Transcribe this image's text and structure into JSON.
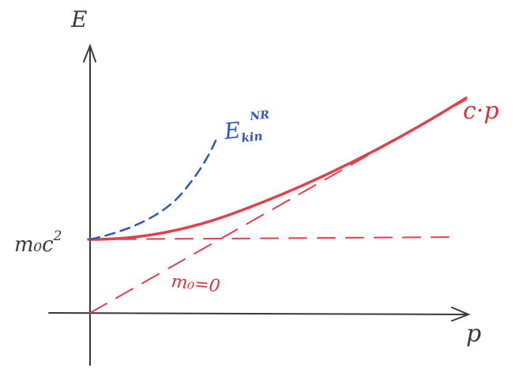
{
  "axes": {
    "y_label": "E",
    "x_label": "p"
  },
  "labels": {
    "rest_energy": {
      "main": "m₀c",
      "sup": "2"
    },
    "total_energy": "c·p",
    "massless": "m₀=0",
    "nonrel_kinetic": {
      "main": "E",
      "sup": "NR",
      "sub": "kin"
    }
  },
  "colors": {
    "relativistic": "#e0414b",
    "nonrelativistic": "#2f55c8",
    "axes": "#3a3a3a"
  }
}
